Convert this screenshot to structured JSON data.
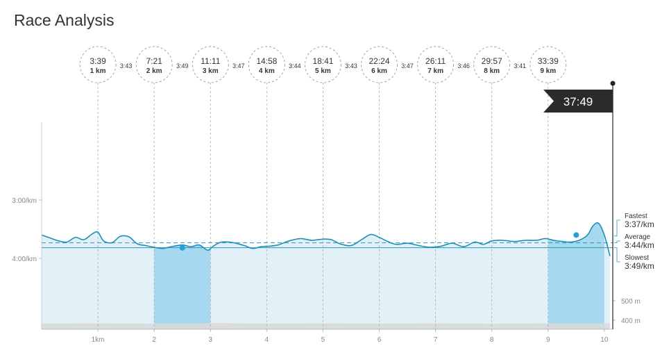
{
  "page": {
    "title": "Race Analysis"
  },
  "finish": {
    "time": "37:49"
  },
  "chart_data": {
    "type": "line",
    "xlabel": "",
    "ylabel": "",
    "x_unit": "km",
    "xlim": [
      0,
      10.15
    ],
    "xticks": [
      {
        "v": 1,
        "label": "1km"
      },
      {
        "v": 2,
        "label": "2"
      },
      {
        "v": 3,
        "label": "3"
      },
      {
        "v": 4,
        "label": "4"
      },
      {
        "v": 5,
        "label": "5"
      },
      {
        "v": 6,
        "label": "6"
      },
      {
        "v": 7,
        "label": "7"
      },
      {
        "v": 8,
        "label": "8"
      },
      {
        "v": 9,
        "label": "9"
      },
      {
        "v": 10,
        "label": "10"
      }
    ],
    "pace_axis": {
      "unit": "min/km",
      "ticks": [
        {
          "v": 3.0,
          "label": "3:00/km"
        },
        {
          "v": 4.0,
          "label": "4:00/km"
        }
      ],
      "range_min_per_km": [
        2.0,
        5.2
      ]
    },
    "elevation_axis": {
      "unit": "m",
      "ticks": [
        {
          "v": 500,
          "label": "500 m"
        },
        {
          "v": 400,
          "label": "400 m"
        }
      ]
    },
    "km_markers": [
      {
        "km": 1,
        "time": "3:39",
        "label": "1 km"
      },
      {
        "km": 2,
        "time": "7:21",
        "label": "2 km"
      },
      {
        "km": 3,
        "time": "11:11",
        "label": "3 km"
      },
      {
        "km": 4,
        "time": "14:58",
        "label": "4 km"
      },
      {
        "km": 5,
        "time": "18:41",
        "label": "5 km"
      },
      {
        "km": 6,
        "time": "22:24",
        "label": "6 km"
      },
      {
        "km": 7,
        "time": "26:11",
        "label": "7 km"
      },
      {
        "km": 8,
        "time": "29:57",
        "label": "8 km"
      },
      {
        "km": 9,
        "time": "33:39",
        "label": "9 km"
      }
    ],
    "splits": [
      {
        "from_km": 1,
        "to_km": 2,
        "pace": "3:43"
      },
      {
        "from_km": 2,
        "to_km": 3,
        "pace": "3:49"
      },
      {
        "from_km": 3,
        "to_km": 4,
        "pace": "3:47"
      },
      {
        "from_km": 4,
        "to_km": 5,
        "pace": "3:44"
      },
      {
        "from_km": 5,
        "to_km": 6,
        "pace": "3:43"
      },
      {
        "from_km": 6,
        "to_km": 7,
        "pace": "3:47"
      },
      {
        "from_km": 7,
        "to_km": 8,
        "pace": "3:46"
      },
      {
        "from_km": 8,
        "to_km": 9,
        "pace": "3:41"
      }
    ],
    "highlight_segments": [
      {
        "from_km": 2,
        "to_km": 3,
        "kind": "slowest",
        "marker_km": 2.5,
        "marker_pace": 3.82
      },
      {
        "from_km": 9,
        "to_km": 10,
        "kind": "fastest",
        "marker_km": 9.5,
        "marker_pace": 3.6
      }
    ],
    "reference_lines": {
      "fastest": {
        "label": "Fastest",
        "value": "3:37/km",
        "pace": 3.617
      },
      "average": {
        "label": "Average",
        "value": "3:44/km",
        "pace": 3.733
      },
      "slowest": {
        "label": "Slowest",
        "value": "3:49/km",
        "pace": 3.817
      }
    },
    "series": [
      {
        "x": [
          0,
          0.15,
          0.3,
          0.45,
          0.6,
          0.75,
          0.9,
          1.0,
          1.1,
          1.25,
          1.4,
          1.55,
          1.7,
          1.85,
          2.0,
          2.15,
          2.3,
          2.5,
          2.65,
          2.8,
          2.95,
          3.05,
          3.2,
          3.4,
          3.6,
          3.75,
          3.9,
          4.05,
          4.2,
          4.4,
          4.6,
          4.8,
          5.0,
          5.15,
          5.3,
          5.5,
          5.7,
          5.85,
          6.0,
          6.15,
          6.3,
          6.5,
          6.7,
          6.9,
          7.1,
          7.3,
          7.5,
          7.7,
          7.85,
          8.0,
          8.2,
          8.4,
          8.6,
          8.8,
          8.95,
          9.1,
          9.25,
          9.4,
          9.55,
          9.7,
          9.8,
          9.9,
          10.0,
          10.1
        ],
        "pace_min_per_km": [
          3.6,
          3.65,
          3.7,
          3.72,
          3.64,
          3.68,
          3.58,
          3.55,
          3.7,
          3.73,
          3.62,
          3.63,
          3.75,
          3.78,
          3.81,
          3.83,
          3.8,
          3.77,
          3.8,
          3.77,
          3.86,
          3.79,
          3.72,
          3.73,
          3.78,
          3.83,
          3.8,
          3.79,
          3.77,
          3.7,
          3.66,
          3.69,
          3.67,
          3.68,
          3.75,
          3.78,
          3.67,
          3.59,
          3.64,
          3.71,
          3.76,
          3.74,
          3.78,
          3.81,
          3.79,
          3.74,
          3.8,
          3.72,
          3.76,
          3.7,
          3.69,
          3.71,
          3.69,
          3.69,
          3.66,
          3.69,
          3.71,
          3.72,
          3.69,
          3.6,
          3.44,
          3.4,
          3.6,
          3.96
        ]
      }
    ],
    "elevation_m": {
      "x": [
        0,
        1,
        2,
        3,
        4,
        5,
        6,
        7,
        8,
        9,
        10,
        10.1
      ],
      "values": [
        383,
        384,
        382,
        385,
        383,
        384,
        383,
        384,
        382,
        384,
        383,
        383
      ]
    },
    "grid": false
  }
}
